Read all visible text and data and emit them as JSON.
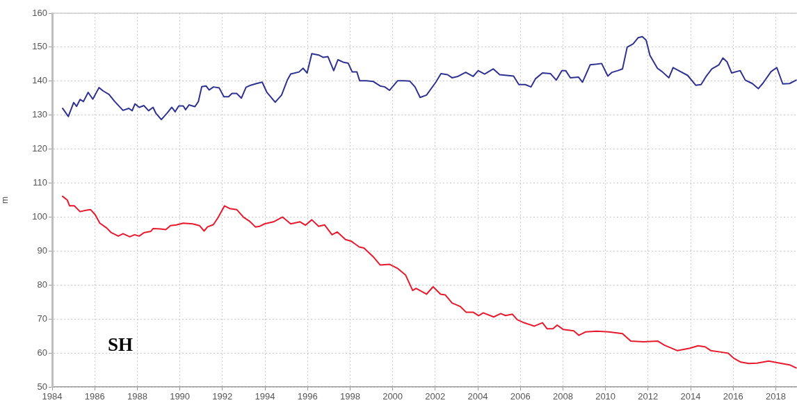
{
  "chart_data": {
    "type": "line",
    "ylabel": "m",
    "annotations": [
      "SH"
    ],
    "grid": true,
    "marker": "none",
    "line_style": "solid",
    "xlim": [
      1984,
      2019
    ],
    "xticks": [
      1984,
      1986,
      1988,
      1990,
      1992,
      1994,
      1996,
      1998,
      2000,
      2002,
      2004,
      2006,
      2008,
      2010,
      2012,
      2014,
      2016,
      2018
    ],
    "ylim": [
      50,
      160
    ],
    "yticks": [
      50,
      60,
      70,
      80,
      90,
      100,
      110,
      120,
      130,
      140,
      150,
      160
    ],
    "series": [
      {
        "color": "#2e3192",
        "x": [
          1984.49,
          1984.76,
          1985.01,
          1985.15,
          1985.31,
          1985.47,
          1985.69,
          1985.91,
          1986.2,
          1986.4,
          1986.67,
          1986.94,
          1987.33,
          1987.6,
          1987.76,
          1987.89,
          1988.09,
          1988.31,
          1988.53,
          1988.74,
          1988.87,
          1989.13,
          1989.4,
          1989.62,
          1989.78,
          1989.95,
          1990.16,
          1990.27,
          1990.43,
          1990.71,
          1990.87,
          1991.03,
          1991.23,
          1991.38,
          1991.58,
          1991.85,
          1992.07,
          1992.29,
          1992.45,
          1992.67,
          1992.89,
          1993.11,
          1993.33,
          1993.6,
          1993.87,
          1994.09,
          1994.48,
          1994.78,
          1995.05,
          1995.21,
          1995.6,
          1995.79,
          1995.98,
          1996.2,
          1996.52,
          1996.74,
          1996.96,
          1997.23,
          1997.43,
          1997.67,
          1997.91,
          1998.1,
          1998.32,
          1998.45,
          1998.76,
          1999.09,
          1999.41,
          1999.63,
          1999.85,
          2000.23,
          2000.56,
          2000.81,
          2001.05,
          2001.29,
          2001.59,
          2002.03,
          2002.27,
          2002.58,
          2002.79,
          2003.07,
          2003.43,
          2003.78,
          2004.02,
          2004.32,
          2004.73,
          2005.03,
          2005.36,
          2005.68,
          2005.93,
          2006.23,
          2006.5,
          2006.71,
          2007.04,
          2007.42,
          2007.69,
          2007.95,
          2008.13,
          2008.35,
          2008.73,
          2008.92,
          2009.28,
          2009.6,
          2009.82,
          2010.11,
          2010.31,
          2010.58,
          2010.8,
          2011.02,
          2011.3,
          2011.54,
          2011.73,
          2011.91,
          2012.09,
          2012.44,
          2012.66,
          2012.98,
          2013.18,
          2013.53,
          2013.86,
          2014.24,
          2014.49,
          2014.73,
          2015.0,
          2015.33,
          2015.52,
          2015.71,
          2015.93,
          2016.33,
          2016.57,
          2016.9,
          2017.18,
          2017.4,
          2017.78,
          2018.05,
          2018.33,
          2018.65,
          2018.96
        ],
        "values": [
          132.0,
          129.6,
          133.7,
          132.6,
          134.6,
          134.0,
          136.7,
          134.7,
          138.1,
          137.1,
          136.1,
          134.0,
          131.4,
          132.0,
          131.3,
          133.3,
          132.3,
          132.8,
          131.3,
          132.3,
          130.6,
          128.7,
          130.6,
          132.3,
          131.0,
          132.7,
          132.7,
          131.6,
          133.0,
          132.5,
          134.0,
          138.4,
          138.6,
          137.4,
          138.3,
          138.0,
          135.4,
          135.4,
          136.4,
          136.4,
          135.0,
          138.2,
          138.8,
          139.3,
          139.7,
          136.7,
          133.8,
          135.9,
          140.3,
          142.1,
          142.7,
          143.8,
          142.4,
          148.1,
          147.7,
          147.0,
          147.2,
          143.1,
          146.3,
          145.6,
          145.3,
          142.7,
          142.7,
          140.1,
          140.1,
          139.9,
          138.6,
          138.3,
          137.3,
          140.1,
          140.1,
          140.0,
          138.3,
          135.2,
          135.9,
          139.7,
          142.2,
          141.9,
          141.0,
          141.4,
          142.6,
          141.4,
          143.1,
          142.1,
          143.6,
          141.9,
          141.7,
          141.5,
          139.0,
          139.0,
          138.3,
          140.7,
          142.4,
          142.2,
          140.3,
          143.1,
          143.1,
          141.0,
          141.2,
          139.7,
          144.8,
          145.0,
          145.2,
          141.5,
          142.6,
          143.1,
          143.6,
          150.0,
          151.0,
          152.8,
          153.1,
          152.1,
          147.6,
          143.8,
          142.8,
          141.0,
          144.0,
          142.8,
          141.7,
          138.8,
          139.0,
          141.4,
          143.6,
          144.8,
          146.8,
          145.7,
          142.4,
          143.1,
          140.3,
          139.3,
          137.8,
          139.4,
          142.8,
          144.0,
          139.2,
          139.3,
          140.3
        ]
      },
      {
        "color": "#e8192c",
        "x": [
          1984.49,
          1984.71,
          1984.82,
          1985.04,
          1985.31,
          1985.58,
          1985.8,
          1986.02,
          1986.24,
          1986.56,
          1986.78,
          1987.11,
          1987.33,
          1987.65,
          1987.87,
          1988.09,
          1988.31,
          1988.64,
          1988.74,
          1989.07,
          1989.34,
          1989.56,
          1989.84,
          1990.16,
          1990.6,
          1990.92,
          1991.14,
          1991.3,
          1991.58,
          1991.8,
          1992.1,
          1992.34,
          1992.67,
          1993.0,
          1993.27,
          1993.55,
          1993.76,
          1993.98,
          1994.4,
          1994.83,
          1995.21,
          1995.65,
          1995.9,
          1996.2,
          1996.52,
          1996.8,
          1997.15,
          1997.4,
          1997.78,
          1998.05,
          1998.43,
          1998.65,
          1999.09,
          1999.41,
          1999.85,
          2000.23,
          2000.61,
          2000.94,
          2001.1,
          2001.59,
          2001.9,
          2002.25,
          2002.47,
          2002.79,
          2003.17,
          2003.45,
          2003.78,
          2004.04,
          2004.26,
          2004.75,
          2005.08,
          2005.3,
          2005.63,
          2005.85,
          2006.17,
          2006.66,
          2007.04,
          2007.26,
          2007.53,
          2007.73,
          2008.02,
          2008.51,
          2008.75,
          2009.06,
          2009.6,
          2010.15,
          2010.8,
          2011.19,
          2011.79,
          2012.45,
          2012.77,
          2013.37,
          2013.97,
          2014.35,
          2014.68,
          2014.95,
          2015.39,
          2015.77,
          2016.04,
          2016.36,
          2016.74,
          2017.12,
          2017.67,
          2018.1,
          2018.65,
          2018.96
        ],
        "values": [
          106.1,
          105.0,
          103.3,
          103.3,
          101.6,
          102.0,
          102.2,
          100.7,
          98.2,
          96.8,
          95.4,
          94.4,
          95.1,
          94.2,
          94.8,
          94.4,
          95.4,
          95.8,
          96.6,
          96.5,
          96.3,
          97.5,
          97.7,
          98.2,
          98.0,
          97.5,
          95.9,
          97.1,
          97.8,
          99.9,
          103.3,
          102.5,
          102.2,
          99.9,
          98.8,
          97.1,
          97.3,
          98.0,
          98.6,
          100.0,
          98.0,
          98.6,
          97.6,
          99.2,
          97.3,
          97.7,
          94.8,
          95.6,
          93.4,
          92.9,
          91.2,
          90.9,
          88.3,
          85.9,
          86.1,
          84.9,
          82.9,
          78.4,
          79.0,
          77.3,
          79.5,
          77.3,
          77.1,
          74.7,
          73.7,
          72.0,
          72.0,
          71.0,
          71.8,
          70.6,
          71.6,
          71.0,
          71.4,
          69.8,
          68.9,
          67.9,
          68.9,
          67.1,
          67.1,
          68.2,
          66.9,
          66.5,
          65.2,
          66.2,
          66.4,
          66.2,
          65.7,
          63.5,
          63.3,
          63.5,
          62.3,
          60.7,
          61.4,
          62.1,
          61.8,
          60.7,
          60.3,
          59.9,
          58.4,
          57.3,
          56.9,
          57.0,
          57.6,
          57.1,
          56.5,
          55.6
        ]
      }
    ]
  }
}
